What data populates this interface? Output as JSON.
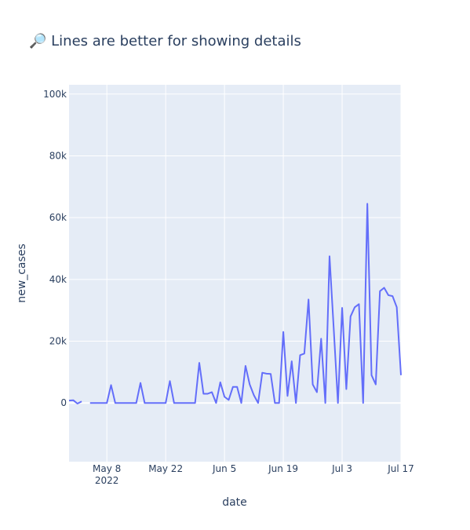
{
  "chart_data": {
    "type": "line",
    "title": "🔎 Lines are better for showing details",
    "xlabel": "date",
    "ylabel": "new_cases",
    "ylim": [
      -19000,
      103000
    ],
    "xlim": [
      "2022-04-29",
      "2022-07-17"
    ],
    "grid": true,
    "x_ticks": [
      {
        "date": "2022-05-08",
        "label": "May 8",
        "sublabel": "2022"
      },
      {
        "date": "2022-05-22",
        "label": "May 22"
      },
      {
        "date": "2022-06-05",
        "label": "Jun 5"
      },
      {
        "date": "2022-06-19",
        "label": "Jun 19"
      },
      {
        "date": "2022-07-03",
        "label": "Jul 3"
      },
      {
        "date": "2022-07-17",
        "label": "Jul 17"
      }
    ],
    "y_ticks": [
      {
        "value": 0,
        "label": "0"
      },
      {
        "value": 20000,
        "label": "20k"
      },
      {
        "value": 40000,
        "label": "40k"
      },
      {
        "value": 60000,
        "label": "60k"
      },
      {
        "value": 80000,
        "label": "80k"
      },
      {
        "value": 100000,
        "label": "100k"
      }
    ],
    "segments": [
      {
        "x": [
          "2022-04-29",
          "2022-04-30",
          "2022-05-01",
          "2022-05-02"
        ],
        "values": [
          800,
          900,
          -200,
          500
        ]
      },
      {
        "x": [
          "2022-05-04",
          "2022-05-05",
          "2022-05-06",
          "2022-05-07",
          "2022-05-08",
          "2022-05-09",
          "2022-05-10",
          "2022-05-11",
          "2022-05-12",
          "2022-05-13",
          "2022-05-14",
          "2022-05-15",
          "2022-05-16",
          "2022-05-17",
          "2022-05-18",
          "2022-05-19",
          "2022-05-20",
          "2022-05-21",
          "2022-05-22",
          "2022-05-23",
          "2022-05-24",
          "2022-05-25",
          "2022-05-26",
          "2022-05-27",
          "2022-05-28",
          "2022-05-29",
          "2022-05-30",
          "2022-05-31",
          "2022-06-01",
          "2022-06-02",
          "2022-06-03",
          "2022-06-04",
          "2022-06-05",
          "2022-06-06",
          "2022-06-07",
          "2022-06-08",
          "2022-06-09",
          "2022-06-10",
          "2022-06-11",
          "2022-06-12",
          "2022-06-13",
          "2022-06-14",
          "2022-06-15",
          "2022-06-16",
          "2022-06-17",
          "2022-06-18",
          "2022-06-19",
          "2022-06-20",
          "2022-06-21",
          "2022-06-22",
          "2022-06-23",
          "2022-06-24",
          "2022-06-25",
          "2022-06-26",
          "2022-06-27",
          "2022-06-28",
          "2022-06-29",
          "2022-06-30",
          "2022-07-01",
          "2022-07-02",
          "2022-07-03",
          "2022-07-04",
          "2022-07-05",
          "2022-07-06",
          "2022-07-07",
          "2022-07-08",
          "2022-07-09",
          "2022-07-10",
          "2022-07-11",
          "2022-07-12",
          "2022-07-13",
          "2022-07-14",
          "2022-07-15",
          "2022-07-16",
          "2022-07-17"
        ],
        "values": [
          0,
          0,
          0,
          0,
          0,
          5800,
          0,
          0,
          0,
          0,
          0,
          0,
          6500,
          0,
          0,
          0,
          0,
          0,
          0,
          7100,
          0,
          0,
          0,
          0,
          0,
          0,
          13000,
          3000,
          3000,
          3500,
          0,
          6700,
          2000,
          1000,
          5200,
          5200,
          0,
          12000,
          6000,
          2500,
          0,
          9800,
          9500,
          9400,
          0,
          0,
          23000,
          2300,
          13500,
          0,
          15500,
          16000,
          33500,
          6000,
          3500,
          20800,
          0,
          47500,
          24000,
          0,
          30800,
          4500,
          28000,
          31000,
          32000,
          0,
          64500,
          9000,
          6000,
          36200,
          37300,
          34900,
          34600,
          31000,
          9000
        ]
      }
    ],
    "colors": {
      "line": "#636efa",
      "plot_bg": "#e5ecf6",
      "grid": "#ffffff",
      "text": "#2a3f5f"
    }
  }
}
